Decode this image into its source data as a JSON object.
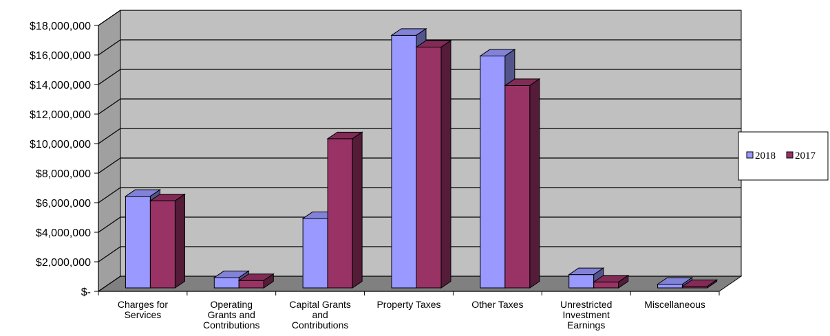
{
  "chart_data": {
    "type": "bar",
    "style": "3d-clustered-column",
    "categories": [
      [
        "Charges for",
        "Services"
      ],
      [
        "Operating",
        "Grants and",
        "Contributions"
      ],
      [
        "Capital Grants",
        "and",
        "Contributions"
      ],
      [
        "Property Taxes"
      ],
      [
        "Other Taxes"
      ],
      [
        "Unrestricted",
        "Investment",
        "Earnings"
      ],
      [
        "Miscellaneous"
      ]
    ],
    "series": [
      {
        "name": "2018",
        "color": "#9999ff",
        "values": [
          6200000,
          700000,
          4700000,
          17100000,
          15700000,
          900000,
          250000
        ]
      },
      {
        "name": "2017",
        "color": "#993366",
        "values": [
          5900000,
          500000,
          10100000,
          16300000,
          13700000,
          400000,
          100000
        ]
      }
    ],
    "y_ticks": [
      "$-",
      "$2,000,000",
      "$4,000,000",
      "$6,000,000",
      "$8,000,000",
      "$10,000,000",
      "$12,000,000",
      "$14,000,000",
      "$16,000,000",
      "$18,000,000"
    ],
    "ylim": [
      0,
      18000000
    ],
    "grid": true,
    "legend_position": "right",
    "wall_color": "#c0c0c0",
    "floor_color": "#808080"
  }
}
